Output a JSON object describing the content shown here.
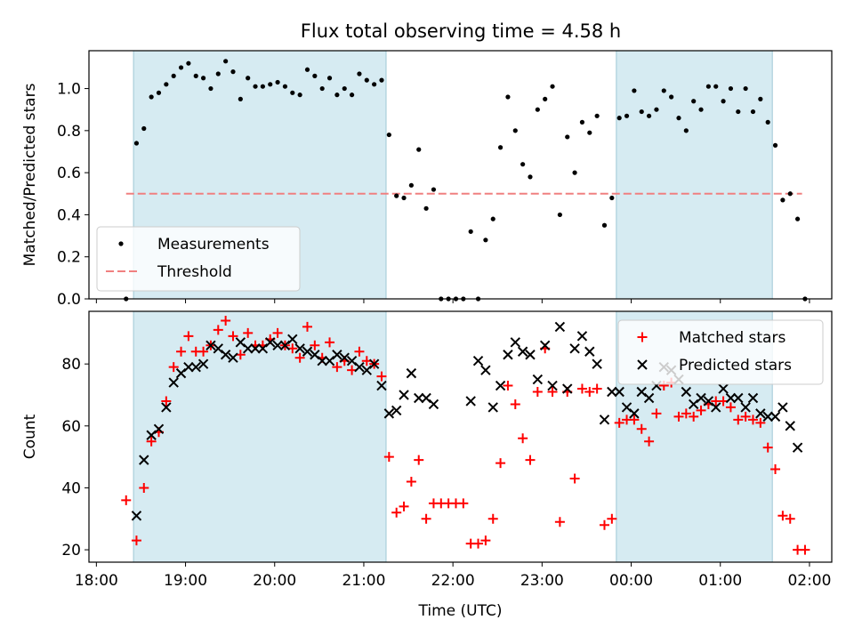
{
  "figure": {
    "title": "Flux total observing time = 4.58 h"
  },
  "chart_data": [
    {
      "type": "scatter",
      "panel": "top",
      "ylabel": "Matched/Predicted stars",
      "xlabel": "",
      "ylim": [
        0,
        1.18
      ],
      "y_ticks": [
        "0.0",
        "0.2",
        "0.4",
        "0.6",
        "0.8",
        "1.0"
      ],
      "y_tick_values": [
        0,
        0.2,
        0.4,
        0.6,
        0.8,
        1.0
      ],
      "legend_position": "lower-left",
      "shaded_windows": [
        [
          "18:25",
          "21:15"
        ],
        [
          "23:50",
          "01:35"
        ]
      ],
      "threshold": {
        "name": "Threshold",
        "value": 0.5,
        "x_range": [
          "18:20",
          "01:55"
        ],
        "color": "#f08080"
      },
      "series": [
        {
          "name": "Measurements",
          "marker": "dot",
          "color": "#000000",
          "x": [
            "18:20",
            "18:27",
            "18:32",
            "18:37",
            "18:42",
            "18:47",
            "18:52",
            "18:57",
            "19:02",
            "19:07",
            "19:12",
            "19:17",
            "19:22",
            "19:27",
            "19:32",
            "19:37",
            "19:42",
            "19:47",
            "19:52",
            "19:57",
            "20:02",
            "20:07",
            "20:12",
            "20:17",
            "20:22",
            "20:27",
            "20:32",
            "20:37",
            "20:42",
            "20:47",
            "20:52",
            "20:57",
            "21:02",
            "21:07",
            "21:12",
            "21:17",
            "21:22",
            "21:27",
            "21:32",
            "21:37",
            "21:42",
            "21:47",
            "21:52",
            "21:57",
            "22:02",
            "22:07",
            "22:12",
            "22:17",
            "22:22",
            "22:27",
            "22:32",
            "22:37",
            "22:42",
            "22:47",
            "22:52",
            "22:57",
            "23:02",
            "23:07",
            "23:12",
            "23:17",
            "23:22",
            "23:27",
            "23:32",
            "23:37",
            "23:42",
            "23:47",
            "23:52",
            "23:57",
            "00:02",
            "00:07",
            "00:12",
            "00:17",
            "00:22",
            "00:27",
            "00:32",
            "00:37",
            "00:42",
            "00:47",
            "00:52",
            "00:57",
            "01:02",
            "01:07",
            "01:12",
            "01:17",
            "01:22",
            "01:27",
            "01:32",
            "01:37",
            "01:42",
            "01:47",
            "01:52",
            "01:57"
          ],
          "y": [
            0.0,
            0.74,
            0.81,
            0.96,
            0.98,
            1.02,
            1.06,
            1.1,
            1.12,
            1.06,
            1.05,
            1.0,
            1.07,
            1.13,
            1.08,
            0.95,
            1.05,
            1.01,
            1.01,
            1.02,
            1.03,
            1.01,
            0.98,
            0.97,
            1.09,
            1.06,
            1.0,
            1.05,
            0.97,
            1.0,
            0.97,
            1.07,
            1.04,
            1.02,
            1.04,
            0.78,
            0.49,
            0.48,
            0.54,
            0.71,
            0.43,
            0.52,
            0.0,
            0.0,
            0.0,
            0.0,
            0.32,
            0.0,
            0.28,
            0.38,
            0.72,
            0.96,
            0.8,
            0.64,
            0.58,
            0.9,
            0.95,
            1.01,
            0.4,
            0.77,
            0.6,
            0.84,
            0.79,
            0.87,
            0.35,
            0.48,
            0.86,
            0.87,
            0.99,
            0.89,
            0.87,
            0.9,
            0.99,
            0.96,
            0.86,
            0.8,
            0.94,
            0.9,
            1.01,
            1.01,
            0.94,
            1.0,
            0.89,
            1.0,
            0.89,
            0.95,
            0.84,
            0.73,
            0.47,
            0.5,
            0.38,
            0.0
          ]
        }
      ]
    },
    {
      "type": "scatter",
      "panel": "bottom",
      "ylabel": "Count",
      "xlabel": "Time (UTC)",
      "ylim": [
        16,
        97
      ],
      "y_ticks": [
        "20",
        "40",
        "60",
        "80"
      ],
      "y_tick_values": [
        20,
        40,
        60,
        80
      ],
      "x_ticks": [
        "18:00",
        "19:00",
        "20:00",
        "21:00",
        "22:00",
        "23:00",
        "00:00",
        "01:00",
        "02:00"
      ],
      "legend_position": "upper-right",
      "shaded_windows": [
        [
          "18:25",
          "21:15"
        ],
        [
          "23:50",
          "01:35"
        ]
      ],
      "series": [
        {
          "name": "Matched stars",
          "marker": "plus",
          "color": "#ff0000",
          "x": [
            "18:20",
            "18:27",
            "18:32",
            "18:37",
            "18:42",
            "18:47",
            "18:52",
            "18:57",
            "19:02",
            "19:07",
            "19:12",
            "19:17",
            "19:22",
            "19:27",
            "19:32",
            "19:37",
            "19:42",
            "19:47",
            "19:52",
            "19:57",
            "20:02",
            "20:07",
            "20:12",
            "20:17",
            "20:22",
            "20:27",
            "20:32",
            "20:37",
            "20:42",
            "20:47",
            "20:52",
            "20:57",
            "21:02",
            "21:07",
            "21:12",
            "21:17",
            "21:22",
            "21:27",
            "21:32",
            "21:37",
            "21:42",
            "21:47",
            "21:52",
            "21:57",
            "22:02",
            "22:07",
            "22:12",
            "22:17",
            "22:22",
            "22:27",
            "22:32",
            "22:37",
            "22:42",
            "22:47",
            "22:52",
            "22:57",
            "23:02",
            "23:07",
            "23:12",
            "23:17",
            "23:22",
            "23:27",
            "23:32",
            "23:37",
            "23:42",
            "23:47",
            "23:52",
            "23:57",
            "00:02",
            "00:07",
            "00:12",
            "00:17",
            "00:22",
            "00:27",
            "00:32",
            "00:37",
            "00:42",
            "00:47",
            "00:52",
            "00:57",
            "01:02",
            "01:07",
            "01:12",
            "01:17",
            "01:22",
            "01:27",
            "01:32",
            "01:37",
            "01:42",
            "01:47",
            "01:52",
            "01:57"
          ],
          "y": [
            36,
            23,
            40,
            55,
            58,
            68,
            79,
            84,
            89,
            84,
            84,
            86,
            91,
            94,
            89,
            83,
            90,
            86,
            86,
            88,
            90,
            86,
            85,
            82,
            92,
            86,
            82,
            87,
            79,
            81,
            78,
            84,
            81,
            80,
            76,
            50,
            32,
            34,
            42,
            49,
            30,
            35,
            35,
            35,
            35,
            35,
            22,
            22,
            23,
            30,
            48,
            73,
            67,
            56,
            49,
            71,
            85,
            71,
            29,
            71,
            43,
            72,
            71,
            72,
            28,
            30,
            61,
            62,
            62,
            59,
            55,
            64,
            73,
            74,
            63,
            64,
            63,
            65,
            67,
            68,
            68,
            66,
            62,
            63,
            62,
            61,
            53,
            46,
            31,
            30,
            20,
            20
          ]
        },
        {
          "name": "Predicted stars",
          "marker": "x",
          "color": "#000000",
          "x": [
            "18:27",
            "18:32",
            "18:37",
            "18:42",
            "18:47",
            "18:52",
            "18:57",
            "19:02",
            "19:07",
            "19:12",
            "19:17",
            "19:22",
            "19:27",
            "19:32",
            "19:37",
            "19:42",
            "19:47",
            "19:52",
            "19:57",
            "20:02",
            "20:07",
            "20:12",
            "20:17",
            "20:22",
            "20:27",
            "20:32",
            "20:37",
            "20:42",
            "20:47",
            "20:52",
            "20:57",
            "21:02",
            "21:07",
            "21:12",
            "21:17",
            "21:22",
            "21:27",
            "21:32",
            "21:37",
            "21:42",
            "21:47",
            "22:12",
            "22:17",
            "22:22",
            "22:27",
            "22:32",
            "22:37",
            "22:42",
            "22:47",
            "22:52",
            "22:57",
            "23:02",
            "23:07",
            "23:12",
            "23:17",
            "23:22",
            "23:27",
            "23:32",
            "23:37",
            "23:42",
            "23:47",
            "23:52",
            "23:57",
            "00:02",
            "00:07",
            "00:12",
            "00:17",
            "00:22",
            "00:27",
            "00:32",
            "00:37",
            "00:42",
            "00:47",
            "00:52",
            "00:57",
            "01:02",
            "01:07",
            "01:12",
            "01:17",
            "01:22",
            "01:27",
            "01:32",
            "01:37",
            "01:42",
            "01:47",
            "01:52"
          ],
          "y": [
            31,
            49,
            57,
            59,
            66,
            74,
            77,
            79,
            79,
            80,
            86,
            85,
            83,
            82,
            87,
            85,
            85,
            85,
            87,
            86,
            86,
            88,
            85,
            84,
            83,
            81,
            81,
            83,
            82,
            81,
            79,
            78,
            80,
            73,
            64,
            65,
            70,
            77,
            69,
            69,
            67,
            68,
            81,
            78,
            66,
            73,
            83,
            87,
            84,
            83,
            75,
            86,
            73,
            92,
            72,
            85,
            89,
            84,
            80,
            62,
            71,
            71,
            66,
            64,
            71,
            69,
            73,
            79,
            78,
            75,
            71,
            67,
            69,
            68,
            66,
            72,
            69,
            69,
            66,
            69,
            64,
            63,
            63,
            66,
            60,
            53
          ]
        }
      ]
    }
  ]
}
